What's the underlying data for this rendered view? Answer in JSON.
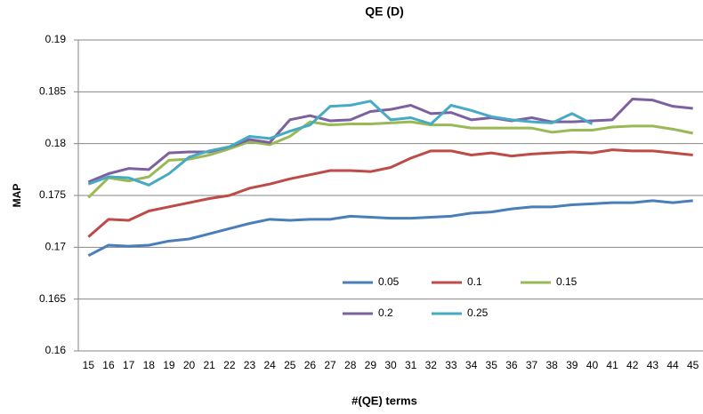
{
  "chart_data": {
    "type": "line",
    "title": "QE (D)",
    "x_label": "#(QE) terms",
    "y_label": "MAP",
    "categories": [
      15,
      16,
      17,
      18,
      19,
      20,
      21,
      22,
      23,
      24,
      25,
      26,
      27,
      28,
      29,
      30,
      31,
      32,
      33,
      34,
      35,
      36,
      37,
      38,
      39,
      40,
      41,
      42,
      43,
      44,
      45
    ],
    "ylim": [
      0.16,
      0.19
    ],
    "yticks": [
      0.16,
      0.165,
      0.17,
      0.175,
      0.18,
      0.185,
      0.19
    ],
    "grid": true,
    "legend": "bottom",
    "series": [
      {
        "name": "0.05",
        "color": "#4a7ebb",
        "values": [
          0.1692,
          0.1702,
          0.1701,
          0.1702,
          0.1706,
          0.1708,
          0.1713,
          0.1718,
          0.1723,
          0.1727,
          0.1726,
          0.1727,
          0.1727,
          0.173,
          0.1729,
          0.1728,
          0.1728,
          0.1729,
          0.173,
          0.1733,
          0.1734,
          0.1737,
          0.1739,
          0.1739,
          0.1741,
          0.1742,
          0.1743,
          0.1743,
          0.1745,
          0.1743,
          0.1745
        ]
      },
      {
        "name": "0.1",
        "color": "#be4b48",
        "values": [
          0.171,
          0.1727,
          0.1726,
          0.1735,
          0.1739,
          0.1743,
          0.1747,
          0.175,
          0.1757,
          0.1761,
          0.1766,
          0.177,
          0.1774,
          0.1774,
          0.1773,
          0.1777,
          0.1786,
          0.1793,
          0.1793,
          0.1789,
          0.1791,
          0.1788,
          0.179,
          0.1791,
          0.1792,
          0.1791,
          0.1794,
          0.1793,
          0.1793,
          0.1791,
          0.1789
        ]
      },
      {
        "name": "0.15",
        "color": "#98b954",
        "values": [
          0.1748,
          0.1767,
          0.1764,
          0.1768,
          0.1784,
          0.1785,
          0.1789,
          0.1795,
          0.1802,
          0.1799,
          0.1807,
          0.1821,
          0.1818,
          0.1819,
          0.1819,
          0.182,
          0.1821,
          0.1818,
          0.1818,
          0.1815,
          0.1815,
          0.1815,
          0.1815,
          0.1811,
          0.1813,
          0.1813,
          0.1816,
          0.1817,
          0.1817,
          0.1814,
          0.181
        ]
      },
      {
        "name": "0.2",
        "color": "#7d60a0",
        "values": [
          0.1763,
          0.1771,
          0.1776,
          0.1775,
          0.1791,
          0.1792,
          0.1792,
          0.1797,
          0.1804,
          0.1801,
          0.1823,
          0.1827,
          0.1822,
          0.1823,
          0.1831,
          0.1833,
          0.1837,
          0.1829,
          0.183,
          0.1823,
          0.1825,
          0.1822,
          0.1825,
          0.1821,
          0.1821,
          0.1822,
          0.1823,
          0.1843,
          0.1842,
          0.1836,
          0.1834
        ]
      },
      {
        "name": "0.25",
        "color": "#46aac5",
        "values": [
          0.1761,
          0.1768,
          0.1767,
          0.176,
          0.1771,
          0.1787,
          0.1793,
          0.1797,
          0.1807,
          0.1805,
          0.1812,
          0.1818,
          0.1836,
          0.1837,
          0.1841,
          0.1823,
          0.1825,
          0.1819,
          0.1837,
          0.1832,
          0.1826,
          0.1823,
          0.1821,
          0.182,
          0.1829,
          0.1819,
          null,
          null,
          null,
          null,
          null
        ]
      }
    ]
  }
}
